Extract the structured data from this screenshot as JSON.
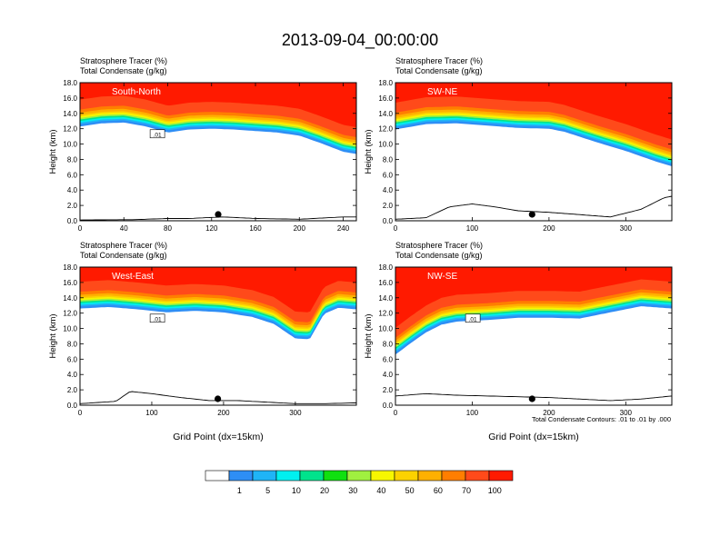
{
  "figure_title": "2013-09-04_00:00:00",
  "footnote": "Total Condensate Contours: .01 to .01 by .000",
  "colorbar": {
    "labels": [
      "1",
      "5",
      "10",
      "20",
      "30",
      "40",
      "50",
      "60",
      "70",
      "100"
    ],
    "colors": [
      "#ffffff",
      "#2e8ef5",
      "#1fb4f6",
      "#00f0f0",
      "#00e38c",
      "#10e010",
      "#a0f040",
      "#f7f700",
      "#fcd200",
      "#ffb000",
      "#ff7e00",
      "#ff4a1a",
      "#ff1a00"
    ]
  },
  "chart_data": [
    {
      "type": "cross-section",
      "name": "South-North",
      "label_line1": "Stratosphere Tracer   (%)",
      "label_line2": "Total Condensate   (g/kg)",
      "xlabel": "",
      "ylabel": "Height (km)",
      "xlim": [
        0,
        252
      ],
      "ylim": [
        0,
        18
      ],
      "xticks": [
        0,
        40,
        80,
        120,
        160,
        200,
        240
      ],
      "yticks": [
        "0.0",
        "2.0",
        "4.0",
        "6.0",
        "8.0",
        "10.0",
        "12.0",
        "14.0",
        "16.0",
        "18.0"
      ],
      "tropopause_km": [
        [
          0,
          14.2
        ],
        [
          20,
          14.6
        ],
        [
          40,
          14.7
        ],
        [
          60,
          14.2
        ],
        [
          80,
          13.4
        ],
        [
          100,
          13.8
        ],
        [
          120,
          13.9
        ],
        [
          140,
          13.8
        ],
        [
          160,
          13.6
        ],
        [
          180,
          13.4
        ],
        [
          200,
          13.0
        ],
        [
          220,
          12.0
        ],
        [
          240,
          10.9
        ],
        [
          252,
          10.6
        ]
      ],
      "terrain_km": [
        [
          0,
          0.1
        ],
        [
          50,
          0.15
        ],
        [
          80,
          0.3
        ],
        [
          100,
          0.3
        ],
        [
          130,
          0.5
        ],
        [
          160,
          0.3
        ],
        [
          200,
          0.2
        ],
        [
          240,
          0.5
        ],
        [
          252,
          0.5
        ]
      ],
      "marker_x": 126,
      "contour_label": ".01"
    },
    {
      "type": "cross-section",
      "name": "SW-NE",
      "label_line1": "Stratosphere Tracer   (%)",
      "label_line2": "Total Condensate   (g/kg)",
      "xlabel": "",
      "ylabel": "Height (km)",
      "xlim": [
        0,
        360
      ],
      "ylim": [
        0,
        18
      ],
      "xticks": [
        0,
        100,
        200,
        300
      ],
      "yticks": [
        "0.0",
        "2.0",
        "4.0",
        "6.0",
        "8.0",
        "10.0",
        "12.0",
        "14.0",
        "16.0",
        "18.0"
      ],
      "tropopause_km": [
        [
          0,
          13.8
        ],
        [
          40,
          14.5
        ],
        [
          80,
          14.6
        ],
        [
          120,
          14.3
        ],
        [
          160,
          14.0
        ],
        [
          200,
          13.9
        ],
        [
          220,
          13.5
        ],
        [
          260,
          12.2
        ],
        [
          300,
          11.0
        ],
        [
          340,
          9.6
        ],
        [
          360,
          9.0
        ]
      ],
      "terrain_km": [
        [
          0,
          0.2
        ],
        [
          40,
          0.4
        ],
        [
          70,
          1.8
        ],
        [
          100,
          2.2
        ],
        [
          130,
          1.8
        ],
        [
          160,
          1.3
        ],
        [
          200,
          1.1
        ],
        [
          240,
          0.8
        ],
        [
          280,
          0.5
        ],
        [
          320,
          1.5
        ],
        [
          350,
          3.0
        ],
        [
          360,
          3.2
        ]
      ],
      "marker_x": 178,
      "contour_label": ""
    },
    {
      "type": "cross-section",
      "name": "West-East",
      "label_line1": "Stratosphere Tracer   (%)",
      "label_line2": "Total Condensate   (g/kg)",
      "xlabel": "Grid Point (dx=15km)",
      "ylabel": "Height (km)",
      "xlim": [
        0,
        385
      ],
      "ylim": [
        0,
        18
      ],
      "xticks": [
        0,
        100,
        200,
        300
      ],
      "yticks": [
        "0.0",
        "2.0",
        "4.0",
        "6.0",
        "8.0",
        "10.0",
        "12.0",
        "14.0",
        "16.0",
        "18.0"
      ],
      "tropopause_km": [
        [
          0,
          14.5
        ],
        [
          40,
          14.7
        ],
        [
          80,
          14.4
        ],
        [
          120,
          14.0
        ],
        [
          160,
          14.2
        ],
        [
          200,
          14.0
        ],
        [
          240,
          13.4
        ],
        [
          270,
          12.5
        ],
        [
          300,
          10.6
        ],
        [
          320,
          10.5
        ],
        [
          340,
          13.8
        ],
        [
          360,
          14.6
        ],
        [
          385,
          14.4
        ]
      ],
      "terrain_km": [
        [
          0,
          0.2
        ],
        [
          50,
          0.5
        ],
        [
          70,
          1.8
        ],
        [
          100,
          1.5
        ],
        [
          140,
          1.0
        ],
        [
          180,
          0.6
        ],
        [
          220,
          0.6
        ],
        [
          260,
          0.4
        ],
        [
          300,
          0.2
        ],
        [
          340,
          0.2
        ],
        [
          385,
          0.3
        ]
      ],
      "marker_x": 192,
      "contour_label": ".01"
    },
    {
      "type": "cross-section",
      "name": "NW-SE",
      "label_line1": "Stratosphere Tracer   (%)",
      "label_line2": "Total Condensate   (g/kg)",
      "xlabel": "Grid Point (dx=15km)",
      "ylabel": "Height (km)",
      "xlim": [
        0,
        360
      ],
      "ylim": [
        0,
        18
      ],
      "xticks": [
        0,
        100,
        200,
        300
      ],
      "yticks": [
        "0.0",
        "2.0",
        "4.0",
        "6.0",
        "8.0",
        "10.0",
        "12.0",
        "14.0",
        "16.0",
        "18.0"
      ],
      "tropopause_km": [
        [
          0,
          8.5
        ],
        [
          20,
          10.0
        ],
        [
          40,
          11.4
        ],
        [
          60,
          12.4
        ],
        [
          80,
          12.8
        ],
        [
          120,
          13.0
        ],
        [
          160,
          13.3
        ],
        [
          200,
          13.3
        ],
        [
          240,
          13.2
        ],
        [
          280,
          14.0
        ],
        [
          320,
          14.8
        ],
        [
          360,
          14.5
        ]
      ],
      "terrain_km": [
        [
          0,
          1.2
        ],
        [
          40,
          1.5
        ],
        [
          80,
          1.3
        ],
        [
          120,
          1.2
        ],
        [
          160,
          1.1
        ],
        [
          200,
          1.0
        ],
        [
          240,
          0.8
        ],
        [
          280,
          0.6
        ],
        [
          320,
          0.8
        ],
        [
          360,
          1.2
        ]
      ],
      "marker_x": 178,
      "contour_label": ".01"
    }
  ]
}
